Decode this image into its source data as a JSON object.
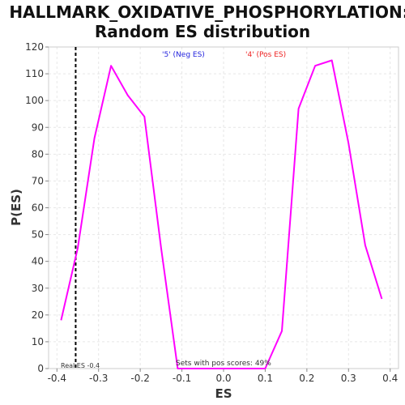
{
  "chart_data": {
    "type": "line",
    "title_line1": "HALLMARK_OXIDATIVE_PHOSPHORYLATION:",
    "title_line2": "Random ES distribution",
    "xlabel": "ES",
    "ylabel": "P(ES)",
    "xlim": [
      -0.42,
      0.42
    ],
    "ylim": [
      0,
      120
    ],
    "xticks": [
      -0.4,
      -0.3,
      -0.2,
      -0.1,
      0.0,
      0.1,
      0.2,
      0.3,
      0.4
    ],
    "xtick_labels": [
      "-0.4",
      "-0.3",
      "-0.2",
      "-0.1",
      "0.0",
      "0.1",
      "0.2",
      "0.3",
      "0.4"
    ],
    "yticks": [
      0,
      10,
      20,
      30,
      40,
      50,
      60,
      70,
      80,
      90,
      100,
      110,
      120
    ],
    "grid": true,
    "series": [
      {
        "color": "#ff00ff",
        "x": [
          -0.39,
          -0.35,
          -0.31,
          -0.27,
          -0.23,
          -0.19,
          -0.15,
          -0.11,
          -0.07,
          -0.03,
          0.01,
          0.05,
          0.1,
          0.14,
          0.18,
          0.22,
          0.26,
          0.3,
          0.34,
          0.38
        ],
        "y": [
          18,
          45,
          86,
          113,
          102,
          94,
          45,
          0,
          0,
          0,
          0,
          0,
          0,
          14,
          97,
          113,
          115,
          84,
          46,
          26
        ]
      }
    ],
    "real_es": -0.355,
    "legend": [
      {
        "label": "'5' (Neg ES)",
        "color": "#2222dd"
      },
      {
        "label": "'4' (Pos ES)",
        "color": "#ee2222"
      }
    ],
    "annotations": {
      "real_es": "Real ES -0.4",
      "pos_scores": "Sets with pos scores: 49%"
    }
  }
}
